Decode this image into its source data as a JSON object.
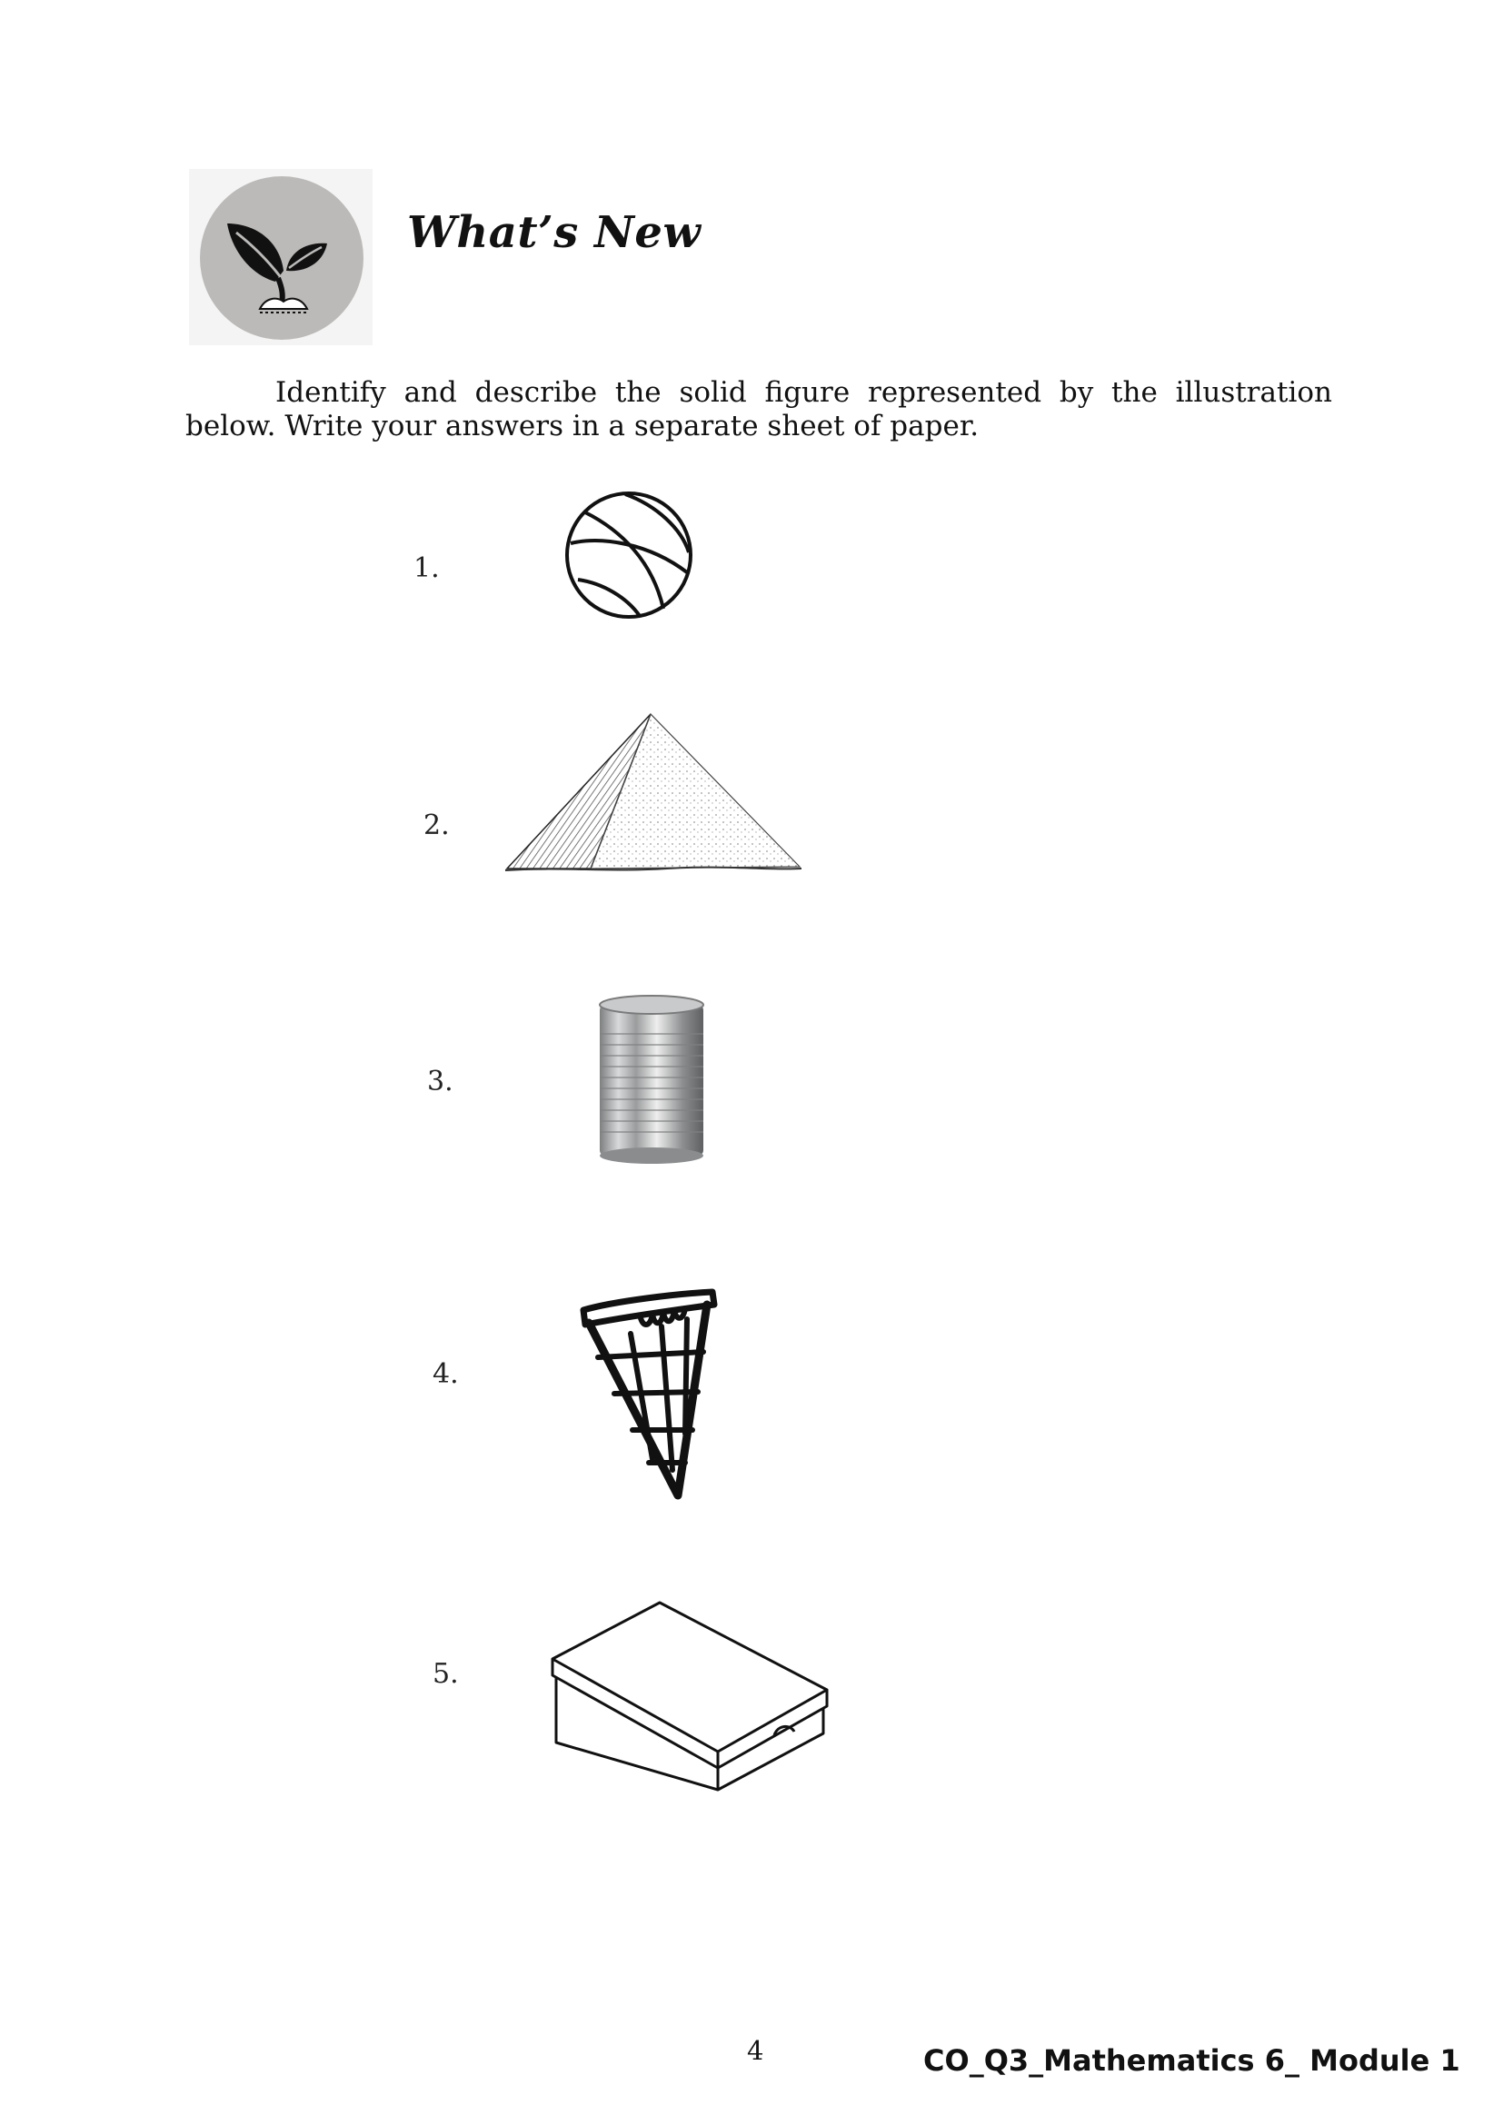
{
  "header": {
    "title": "What’s New",
    "icon": "seedling-icon"
  },
  "instructions": "Identify and describe the solid figure represented by the illustration below. Write your answers in a separate sheet of paper.",
  "items": [
    {
      "number": "1.",
      "icon": "basketball-icon"
    },
    {
      "number": "2.",
      "icon": "pyramid-icon"
    },
    {
      "number": "3.",
      "icon": "tin-can-icon"
    },
    {
      "number": "4.",
      "icon": "ice-cream-cone-icon"
    },
    {
      "number": "5.",
      "icon": "shoe-box-icon"
    }
  ],
  "footer": {
    "page_number": "4",
    "module_label": "CO_Q3_Mathematics 6_ Module 1"
  }
}
